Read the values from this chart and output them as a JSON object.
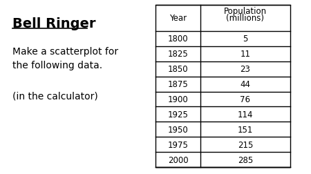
{
  "title": "Bell Ringer",
  "body_text_line1": "Make a scatterplot for",
  "body_text_line2": "the following data.",
  "body_text_line3": "(in the calculator)",
  "col_header_year": "Year",
  "col_header_pop1": "Population",
  "col_header_pop2": "(millions)",
  "years": [
    1800,
    1825,
    1850,
    1875,
    1900,
    1925,
    1950,
    1975,
    2000
  ],
  "populations": [
    5,
    11,
    23,
    44,
    76,
    114,
    151,
    215,
    285
  ],
  "bg_color": "#ffffff",
  "text_color": "#000000",
  "table_line_color": "#000000",
  "figwidth": 4.5,
  "figheight": 2.53,
  "dpi": 100
}
